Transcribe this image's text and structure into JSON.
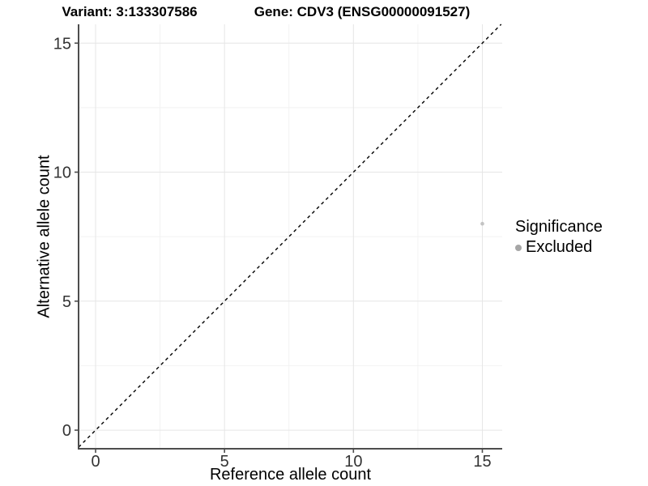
{
  "header": {
    "variant_title": "Variant: 3:133307586",
    "gene_title": "Gene: CDV3 (ENSG00000091527)"
  },
  "chart_data": {
    "type": "scatter",
    "xlabel": "Reference allele count",
    "ylabel": "Alternative allele count",
    "xlim": [
      -0.66,
      15.77
    ],
    "ylim": [
      -0.72,
      15.73
    ],
    "x_ticks": [
      {
        "value": 0,
        "label": "0"
      },
      {
        "value": 5,
        "label": "5"
      },
      {
        "value": 10,
        "label": "10"
      },
      {
        "value": 15,
        "label": "15"
      }
    ],
    "y_ticks": [
      {
        "value": 0,
        "label": "0"
      },
      {
        "value": 5,
        "label": "5"
      },
      {
        "value": 10,
        "label": "10"
      },
      {
        "value": 15,
        "label": "15"
      }
    ],
    "x_minor": [
      2.5,
      7.5,
      12.5
    ],
    "y_minor": [
      2.5,
      7.5,
      12.5
    ],
    "grid": "major+minor",
    "series": [
      {
        "name": "Excluded",
        "marker": "circle",
        "color": "#c3c3c3",
        "point_radius": 2.3,
        "points": [
          {
            "x": 15,
            "y": 8
          }
        ]
      }
    ],
    "reference_line": {
      "kind": "identity y=x",
      "style": "dashed",
      "color": "#000000",
      "from": -0.66,
      "to": 15.73
    },
    "legend": {
      "title": "Significance",
      "position": "right",
      "entries": [
        {
          "label": "Excluded",
          "color": "#a6a6a6",
          "marker": "circle"
        }
      ]
    },
    "colors": {
      "background": "#ffffff",
      "grid_major": "#e6e6e6",
      "grid_minor": "#f2f2f2",
      "axis_line": "#4d4d4d",
      "tick_text": "#333333"
    }
  }
}
